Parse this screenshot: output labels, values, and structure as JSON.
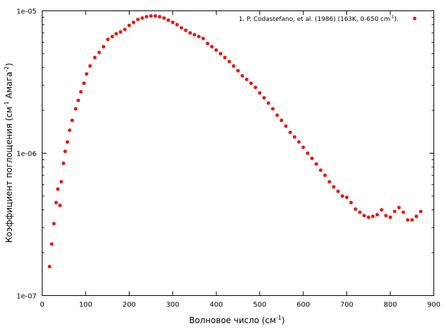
{
  "chart_data": {
    "type": "scatter",
    "xlabel": {
      "base": "Волновое число (см",
      "sup": "-1",
      "tail": ")"
    },
    "ylabel": {
      "base": "Коэффициент поглощения (см",
      "sup1": "-1",
      "mid": " Амага",
      "sup2": "-2",
      "tail": ")"
    },
    "xlim": [
      0,
      900
    ],
    "ylim": [
      1e-07,
      1e-05
    ],
    "yscale": "log",
    "grid": false,
    "legend_position": "top-right",
    "x_ticks": [
      0,
      100,
      200,
      300,
      400,
      500,
      600,
      700,
      800,
      900
    ],
    "y_ticks": [
      {
        "value": 1e-07,
        "label": "1e-07"
      },
      {
        "value": 1e-06,
        "label": "1e-06"
      },
      {
        "value": 1e-05,
        "label": "1e-05"
      }
    ],
    "series": [
      {
        "name": "1. P. Codastefano, et al. (1986) (163K, 0-650 cm-1).",
        "legend": {
          "base": "1. P. Codastefano, et al. (1986) (163K, 0-650 cm",
          "sup": "-1",
          "tail": ")."
        },
        "color": "#e0201b",
        "points": [
          [
            17,
            1.6e-07
          ],
          [
            22,
            2.3e-07
          ],
          [
            27,
            3.2e-07
          ],
          [
            32,
            4.5e-07
          ],
          [
            36,
            5.6e-07
          ],
          [
            41,
            4.3e-07
          ],
          [
            44,
            6.3e-07
          ],
          [
            49,
            8.5e-07
          ],
          [
            53,
            1.03e-06
          ],
          [
            58,
            1.2e-06
          ],
          [
            63,
            1.45e-06
          ],
          [
            69,
            1.7e-06
          ],
          [
            77,
            2.05e-06
          ],
          [
            83,
            2.35e-06
          ],
          [
            89,
            2.7e-06
          ],
          [
            96,
            3.1e-06
          ],
          [
            102,
            3.6e-06
          ],
          [
            110,
            4.1e-06
          ],
          [
            121,
            4.7e-06
          ],
          [
            131,
            5.1e-06
          ],
          [
            141,
            5.6e-06
          ],
          [
            151,
            6.3e-06
          ],
          [
            161,
            6.6e-06
          ],
          [
            170,
            6.9e-06
          ],
          [
            180,
            7.1e-06
          ],
          [
            190,
            7.4e-06
          ],
          [
            200,
            7.9e-06
          ],
          [
            210,
            8.3e-06
          ],
          [
            220,
            8.7e-06
          ],
          [
            230,
            8.9e-06
          ],
          [
            240,
            9.1e-06
          ],
          [
            250,
            9.2e-06
          ],
          [
            260,
            9.2e-06
          ],
          [
            270,
            9.1e-06
          ],
          [
            280,
            8.9e-06
          ],
          [
            290,
            8.6e-06
          ],
          [
            300,
            8.3e-06
          ],
          [
            310,
            8e-06
          ],
          [
            320,
            7.6e-06
          ],
          [
            330,
            7.3e-06
          ],
          [
            340,
            7e-06
          ],
          [
            350,
            6.8e-06
          ],
          [
            360,
            6.6e-06
          ],
          [
            370,
            6.4e-06
          ],
          [
            380,
            5.9e-06
          ],
          [
            390,
            5.6e-06
          ],
          [
            400,
            5.3e-06
          ],
          [
            410,
            5e-06
          ],
          [
            420,
            4.7e-06
          ],
          [
            430,
            4.4e-06
          ],
          [
            440,
            4.1e-06
          ],
          [
            450,
            3.8e-06
          ],
          [
            460,
            3.5e-06
          ],
          [
            470,
            3.3e-06
          ],
          [
            480,
            3.1e-06
          ],
          [
            490,
            2.9e-06
          ],
          [
            500,
            2.65e-06
          ],
          [
            510,
            2.45e-06
          ],
          [
            520,
            2.25e-06
          ],
          [
            530,
            2.05e-06
          ],
          [
            540,
            1.85e-06
          ],
          [
            550,
            1.7e-06
          ],
          [
            560,
            1.55e-06
          ],
          [
            570,
            1.4e-06
          ],
          [
            580,
            1.3e-06
          ],
          [
            590,
            1.2e-06
          ],
          [
            600,
            1.1e-06
          ],
          [
            610,
            1e-06
          ],
          [
            620,
            9.2e-07
          ],
          [
            630,
            8.4e-07
          ],
          [
            640,
            7.6e-07
          ],
          [
            650,
            7e-07
          ],
          [
            660,
            6.3e-07
          ],
          [
            670,
            5.8e-07
          ],
          [
            680,
            5.4e-07
          ],
          [
            690,
            5e-07
          ],
          [
            700,
            4.9e-07
          ],
          [
            710,
            4.5e-07
          ],
          [
            720,
            4.05e-07
          ],
          [
            730,
            3.85e-07
          ],
          [
            740,
            3.65e-07
          ],
          [
            750,
            3.55e-07
          ],
          [
            760,
            3.6e-07
          ],
          [
            770,
            3.7e-07
          ],
          [
            780,
            4e-07
          ],
          [
            790,
            3.65e-07
          ],
          [
            800,
            3.55e-07
          ],
          [
            810,
            3.9e-07
          ],
          [
            820,
            4.15e-07
          ],
          [
            830,
            3.85e-07
          ],
          [
            840,
            3.4e-07
          ],
          [
            850,
            3.4e-07
          ],
          [
            860,
            3.6e-07
          ],
          [
            870,
            3.9e-07
          ]
        ]
      }
    ]
  }
}
